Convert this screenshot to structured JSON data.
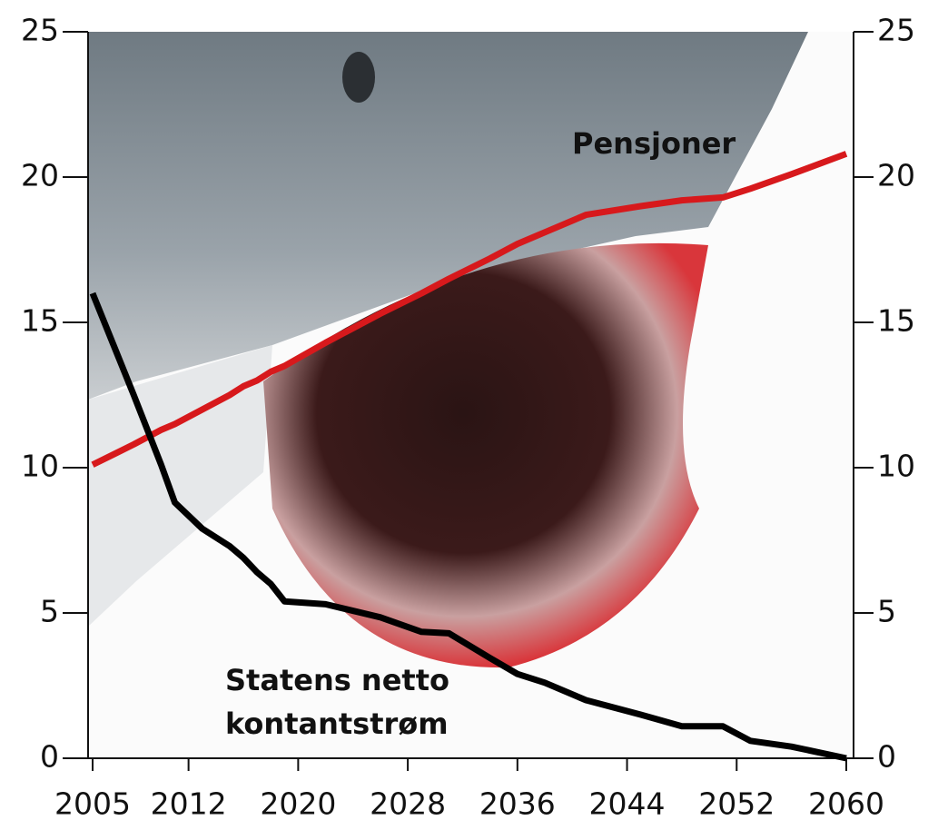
{
  "chart_data": {
    "type": "line",
    "x": [
      2005,
      2008,
      2010,
      2011,
      2013,
      2015,
      2016,
      2017,
      2018,
      2019,
      2022,
      2026,
      2029,
      2031,
      2034,
      2036,
      2038,
      2041,
      2045,
      2048,
      2051,
      2053,
      2056,
      2060
    ],
    "series": [
      {
        "name": "Pensjoner",
        "color": "#d7191c",
        "values": [
          10.1,
          10.8,
          11.3,
          11.5,
          12.0,
          12.5,
          12.8,
          13.0,
          13.3,
          13.5,
          14.3,
          15.3,
          16.0,
          16.5,
          17.2,
          17.7,
          18.1,
          18.7,
          19.0,
          19.2,
          19.3,
          19.6,
          20.1,
          20.8
        ]
      },
      {
        "name": "Statens netto kontantstrøm",
        "color": "#000000",
        "values": [
          16.0,
          12.5,
          10.1,
          8.8,
          7.9,
          7.3,
          6.9,
          6.4,
          6.0,
          5.4,
          5.3,
          4.85,
          4.35,
          4.3,
          3.45,
          2.9,
          2.6,
          2.0,
          1.5,
          1.1,
          1.1,
          0.6,
          0.4,
          0.0
        ]
      }
    ],
    "xlim": [
      2005,
      2060
    ],
    "xticks": [
      2005,
      2012,
      2020,
      2028,
      2036,
      2044,
      2052,
      2060
    ],
    "ylim": [
      0,
      25
    ],
    "yticks": [
      0,
      5,
      10,
      15,
      20,
      25
    ],
    "y2lim": [
      0,
      25
    ],
    "y2ticks": [
      0,
      5,
      10,
      15,
      20,
      25
    ]
  }
}
